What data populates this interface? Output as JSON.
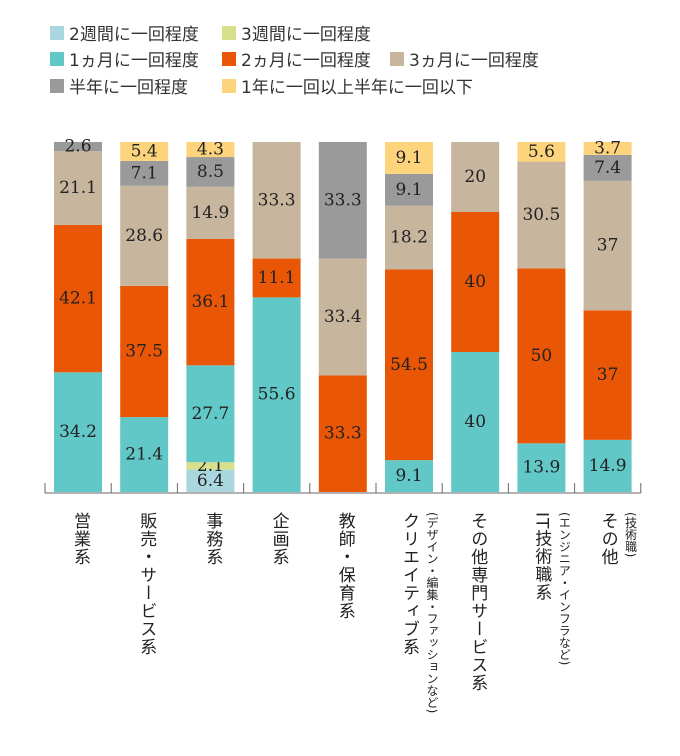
{
  "chart_data": {
    "type": "bar",
    "stacked": true,
    "orientation": "vertical",
    "ylim": [
      0,
      100
    ],
    "grid": false,
    "legend_placement": "top-left",
    "categories": [
      {
        "label": "営業系",
        "sub": ""
      },
      {
        "label": "販売・サービス系",
        "sub": ""
      },
      {
        "label": "事務系",
        "sub": ""
      },
      {
        "label": "企画系",
        "sub": ""
      },
      {
        "label": "教師・保育系",
        "sub": ""
      },
      {
        "label": "クリエイティブ系",
        "sub": "(デザイン・編集・ファッションなど)"
      },
      {
        "label": "その他専門サービス系",
        "sub": ""
      },
      {
        "label": "IT技術職系",
        "sub": "(エンジニア・インフラなど)"
      },
      {
        "label": "その他",
        "sub": "(技術職)"
      }
    ],
    "series": [
      {
        "name": "2週間に一回程度",
        "color": "#a9d6df",
        "values": [
          0,
          0,
          6.4,
          0,
          0,
          0,
          0,
          0,
          0
        ]
      },
      {
        "name": "3週間に一回程度",
        "color": "#d9e08c",
        "values": [
          0,
          0,
          2.1,
          0,
          0,
          0,
          0,
          0,
          0
        ]
      },
      {
        "name": "1ヵ月に一回程度",
        "color": "#62c8c7",
        "values": [
          34.2,
          21.4,
          27.7,
          55.6,
          0,
          9.1,
          40,
          13.9,
          14.9
        ]
      },
      {
        "name": "2ヵ月に一回程度",
        "color": "#e85606",
        "values": [
          42.1,
          37.5,
          36.1,
          11.1,
          33.3,
          54.5,
          40,
          50,
          37
        ]
      },
      {
        "name": "3ヵ月に一回程度",
        "color": "#c8b59d",
        "values": [
          21.1,
          28.6,
          14.9,
          33.3,
          33.4,
          18.2,
          20,
          30.5,
          37
        ]
      },
      {
        "name": "半年に一回程度",
        "color": "#9a9a9a",
        "values": [
          2.6,
          7.1,
          8.5,
          0,
          33.3,
          9.1,
          0,
          0,
          7.4
        ]
      },
      {
        "name": "1年に一回以上半年に一回以下",
        "color": "#fdd47c",
        "values": [
          0,
          5.4,
          4.3,
          0,
          0,
          9.1,
          0,
          5.6,
          3.7
        ]
      }
    ]
  }
}
